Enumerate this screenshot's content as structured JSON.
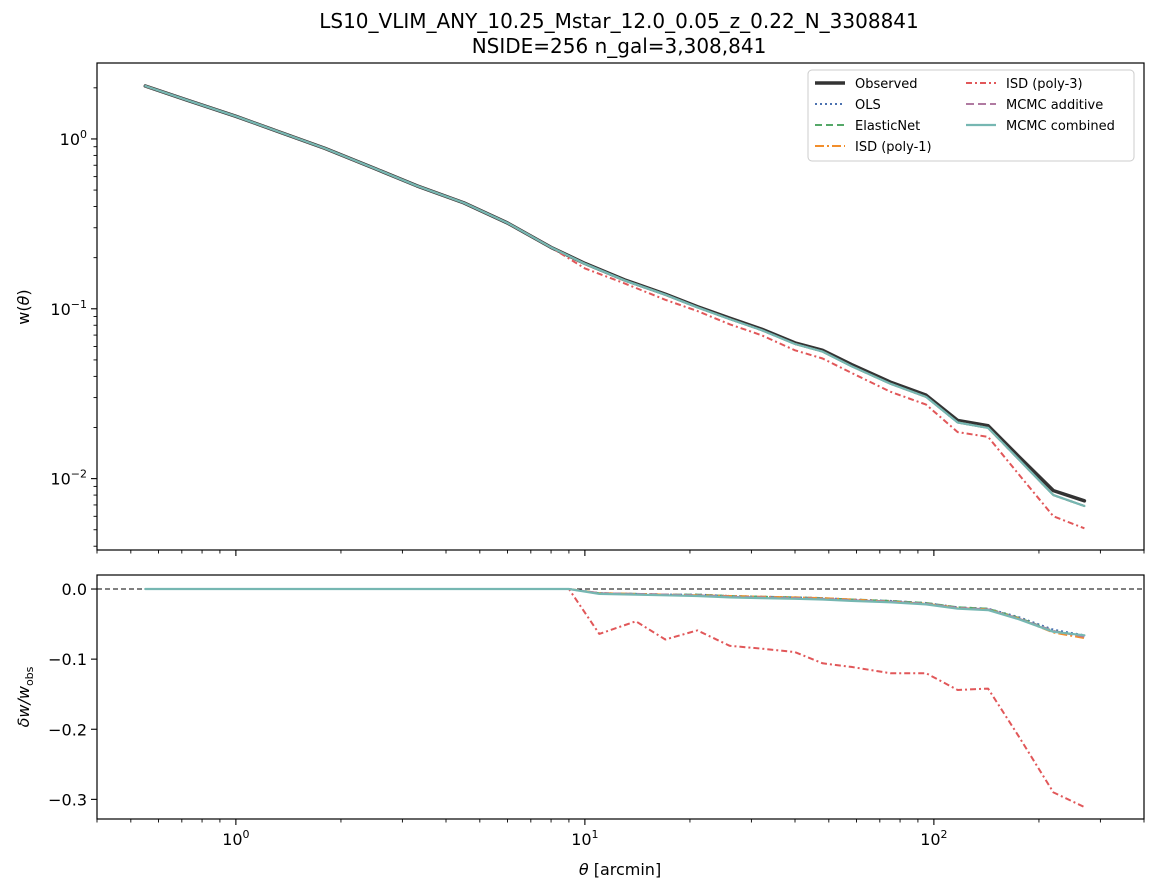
{
  "figure": {
    "title_line1": "LS10_VLIM_ANY_10.25_Mstar_12.0_0.05_z_0.22_N_3308841",
    "title_line2": "NSIDE=256  n_gal=3,308,841"
  },
  "chart_data": [
    {
      "type": "line",
      "panel": "top",
      "ylabel_main": "w(",
      "ylabel_theta": "θ",
      "ylabel_close": ")",
      "xscale": "log",
      "yscale": "log",
      "xlim": [
        0.4,
        400
      ],
      "ylim": [
        0.0038,
        2.8
      ],
      "y_ticks": [
        {
          "value": 1,
          "base": "10",
          "exp": "0"
        },
        {
          "value": 0.1,
          "base": "10",
          "exp": "−1"
        },
        {
          "value": 0.01,
          "base": "10",
          "exp": "−2"
        }
      ],
      "legend_position": "upper right",
      "legend_columns": 2,
      "x": [
        0.55,
        0.72,
        1.0,
        1.3,
        1.8,
        2.5,
        3.3,
        4.5,
        6.0,
        8.0,
        10.0,
        13.0,
        17.0,
        21.0,
        26.0,
        32.0,
        40.0,
        48.0,
        58.0,
        75.0,
        95.0,
        117.0,
        143.0,
        175.0,
        220.0,
        270.0
      ],
      "series": [
        {
          "name": "Observed",
          "color": "#333333",
          "dash": "",
          "width": 3.5,
          "values": [
            2.05,
            1.7,
            1.36,
            1.12,
            0.88,
            0.67,
            0.53,
            0.42,
            0.32,
            0.23,
            0.185,
            0.148,
            0.122,
            0.103,
            0.088,
            0.076,
            0.063,
            0.057,
            0.047,
            0.037,
            0.031,
            0.022,
            0.0205,
            0.0135,
            0.0085,
            0.0074
          ]
        },
        {
          "name": "OLS",
          "color": "#4c72b0",
          "dash": "2,3",
          "width": 2,
          "values": [
            2.05,
            1.7,
            1.36,
            1.12,
            0.88,
            0.67,
            0.53,
            0.42,
            0.32,
            0.23,
            0.184,
            0.147,
            0.121,
            0.102,
            0.087,
            0.075,
            0.062,
            0.056,
            0.046,
            0.0362,
            0.0303,
            0.0214,
            0.0199,
            0.013,
            0.008,
            0.0069
          ]
        },
        {
          "name": "ElasticNet",
          "color": "#55a868",
          "dash": "7,4",
          "width": 2,
          "values": [
            2.05,
            1.7,
            1.36,
            1.12,
            0.88,
            0.67,
            0.53,
            0.42,
            0.32,
            0.23,
            0.184,
            0.147,
            0.121,
            0.102,
            0.087,
            0.075,
            0.062,
            0.056,
            0.046,
            0.0362,
            0.0303,
            0.0214,
            0.0199,
            0.013,
            0.008,
            0.0069
          ]
        },
        {
          "name": "ISD (poly-1)",
          "color": "#f28e2b",
          "dash": "9,3,2,3",
          "width": 2,
          "values": [
            2.05,
            1.7,
            1.36,
            1.12,
            0.88,
            0.67,
            0.53,
            0.42,
            0.32,
            0.23,
            0.184,
            0.147,
            0.121,
            0.102,
            0.087,
            0.075,
            0.062,
            0.056,
            0.046,
            0.0362,
            0.0303,
            0.0214,
            0.0199,
            0.013,
            0.008,
            0.0069
          ]
        },
        {
          "name": "ISD (poly-3)",
          "color": "#e15759",
          "dash": "6,3,2,3",
          "width": 2,
          "values": [
            2.05,
            1.7,
            1.36,
            1.12,
            0.88,
            0.67,
            0.53,
            0.42,
            0.32,
            0.23,
            0.173,
            0.141,
            0.113,
            0.097,
            0.081,
            0.07,
            0.057,
            0.051,
            0.042,
            0.0325,
            0.0273,
            0.0188,
            0.0176,
            0.0106,
            0.006,
            0.0051
          ]
        },
        {
          "name": "MCMC additive",
          "color": "#b07aa1",
          "dash": "8,4",
          "width": 2,
          "values": [
            2.05,
            1.7,
            1.36,
            1.12,
            0.88,
            0.67,
            0.53,
            0.42,
            0.32,
            0.23,
            0.184,
            0.147,
            0.121,
            0.102,
            0.087,
            0.075,
            0.062,
            0.056,
            0.046,
            0.0362,
            0.0303,
            0.0214,
            0.0199,
            0.013,
            0.008,
            0.0069
          ]
        },
        {
          "name": "MCMC combined",
          "color": "#76b7b2",
          "dash": "",
          "width": 2.2,
          "values": [
            2.05,
            1.7,
            1.36,
            1.12,
            0.88,
            0.67,
            0.53,
            0.42,
            0.32,
            0.23,
            0.184,
            0.147,
            0.121,
            0.102,
            0.087,
            0.075,
            0.062,
            0.056,
            0.046,
            0.0362,
            0.0303,
            0.0214,
            0.0199,
            0.013,
            0.008,
            0.0069
          ]
        }
      ]
    },
    {
      "type": "line",
      "panel": "bottom",
      "ylabel_delta": "δw/w",
      "ylabel_sub": "obs",
      "xlabel_theta": "θ",
      "xlabel_rest": " [arcmin]",
      "xscale": "log",
      "xlim": [
        0.4,
        400
      ],
      "ylim": [
        -0.328,
        0.02
      ],
      "y_ticks": [
        "0.0",
        "−0.1",
        "−0.2",
        "−0.3"
      ],
      "y_tick_values": [
        0,
        -0.1,
        -0.2,
        -0.3
      ],
      "x_ticks": [
        {
          "value": 1,
          "base": "10",
          "exp": "0"
        },
        {
          "value": 10,
          "base": "10",
          "exp": "1"
        },
        {
          "value": 100,
          "base": "10",
          "exp": "2"
        }
      ],
      "reference_line": 0,
      "x": [
        0.55,
        0.72,
        1.0,
        1.3,
        1.8,
        2.5,
        3.3,
        4.5,
        6.0,
        8.0,
        9.0,
        11.0,
        14.0,
        17.0,
        21.0,
        26.0,
        32.0,
        40.0,
        48.0,
        58.0,
        75.0,
        95.0,
        117.0,
        143.0,
        175.0,
        220.0,
        270.0
      ],
      "series": [
        {
          "name": "OLS",
          "color": "#4c72b0",
          "dash": "2,3",
          "width": 2,
          "values": [
            0,
            0,
            0,
            0,
            0,
            0,
            0,
            0,
            0,
            0,
            0,
            -0.006,
            -0.007,
            -0.008,
            -0.008,
            -0.01,
            -0.011,
            -0.012,
            -0.013,
            -0.015,
            -0.017,
            -0.02,
            -0.026,
            -0.028,
            -0.04,
            -0.058,
            -0.066
          ]
        },
        {
          "name": "ElasticNet",
          "color": "#55a868",
          "dash": "7,4",
          "width": 2,
          "values": [
            0,
            0,
            0,
            0,
            0,
            0,
            0,
            0,
            0,
            0,
            0,
            -0.006,
            -0.007,
            -0.008,
            -0.008,
            -0.01,
            -0.011,
            -0.012,
            -0.013,
            -0.015,
            -0.017,
            -0.02,
            -0.026,
            -0.028,
            -0.041,
            -0.06,
            -0.067
          ]
        },
        {
          "name": "ISD (poly-1)",
          "color": "#f28e2b",
          "dash": "9,3,2,3",
          "width": 2,
          "values": [
            0,
            0,
            0,
            0,
            0,
            0,
            0,
            0,
            0,
            0,
            0,
            -0.006,
            -0.007,
            -0.008,
            -0.009,
            -0.01,
            -0.011,
            -0.012,
            -0.013,
            -0.015,
            -0.018,
            -0.021,
            -0.027,
            -0.029,
            -0.042,
            -0.062,
            -0.07
          ]
        },
        {
          "name": "ISD (poly-3)",
          "color": "#e15759",
          "dash": "6,3,2,3",
          "width": 2,
          "values": [
            0,
            0,
            0,
            0,
            0,
            0,
            0,
            0,
            0,
            0,
            0,
            -0.064,
            -0.046,
            -0.072,
            -0.059,
            -0.081,
            -0.085,
            -0.09,
            -0.106,
            -0.111,
            -0.12,
            -0.12,
            -0.144,
            -0.142,
            -0.21,
            -0.29,
            -0.311
          ]
        },
        {
          "name": "MCMC additive",
          "color": "#b07aa1",
          "dash": "8,4",
          "width": 2,
          "values": [
            0,
            0,
            0,
            0,
            0,
            0,
            0,
            0,
            0,
            0,
            0,
            -0.006,
            -0.007,
            -0.008,
            -0.009,
            -0.011,
            -0.012,
            -0.013,
            -0.014,
            -0.016,
            -0.018,
            -0.021,
            -0.027,
            -0.029,
            -0.042,
            -0.06,
            -0.068
          ]
        },
        {
          "name": "MCMC combined",
          "color": "#76b7b2",
          "dash": "",
          "width": 2.2,
          "values": [
            0,
            0,
            0,
            0,
            0,
            0,
            0,
            0,
            0,
            0,
            0,
            -0.007,
            -0.008,
            -0.009,
            -0.01,
            -0.012,
            -0.013,
            -0.014,
            -0.015,
            -0.017,
            -0.019,
            -0.022,
            -0.028,
            -0.03,
            -0.043,
            -0.061,
            -0.066
          ]
        }
      ]
    }
  ]
}
